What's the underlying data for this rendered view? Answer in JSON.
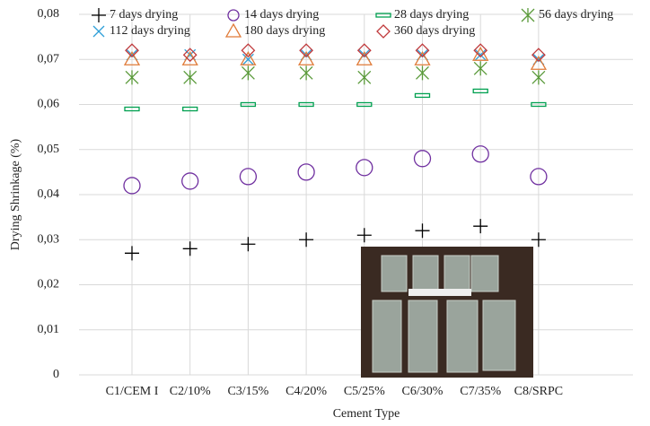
{
  "chart_data": {
    "type": "scatter",
    "y_label": "Drying Shrinkage (%)",
    "x_label": "Cement Type",
    "categories": [
      "C1/CEM I",
      "C2/10%",
      "C3/15%",
      "C4/20%",
      "C5/25%",
      "C6/30%",
      "C7/35%",
      "C8/SRPC"
    ],
    "ylim": [
      0,
      0.08
    ],
    "yticks": [
      0,
      {
        "value": 0.01,
        "label": "0,01"
      },
      {
        "value": 0.02,
        "label": "0,02"
      },
      {
        "value": 0.03,
        "label": "0,03"
      },
      {
        "value": 0.04,
        "label": "0,04"
      },
      {
        "value": 0.05,
        "label": "0,05"
      },
      {
        "value": 0.06,
        "label": "0,06"
      },
      {
        "value": 0.07,
        "label": "0,07"
      },
      {
        "value": 0.08,
        "label": "0,08"
      }
    ],
    "grid": true,
    "series": [
      {
        "name": "7 days drying",
        "color": "#000000",
        "marker": "plus",
        "values": [
          0.027,
          0.028,
          0.029,
          0.03,
          0.031,
          0.032,
          0.033,
          0.03
        ]
      },
      {
        "name": "14 days drying",
        "color": "#7030a0",
        "marker": "circle",
        "values": [
          0.042,
          0.043,
          0.044,
          0.045,
          0.046,
          0.048,
          0.049,
          0.044
        ]
      },
      {
        "name": "28 days drying",
        "color": "#00a050",
        "marker": "dash",
        "values": [
          0.059,
          0.059,
          0.06,
          0.06,
          0.06,
          0.062,
          0.063,
          0.06
        ]
      },
      {
        "name": "56 days drying",
        "color": "#5a9a3a",
        "marker": "star",
        "values": [
          0.066,
          0.066,
          0.067,
          0.067,
          0.066,
          0.067,
          0.068,
          0.066
        ]
      },
      {
        "name": "112 days drying",
        "color": "#2e9fd8",
        "marker": "x",
        "values": [
          0.071,
          0.071,
          0.07,
          0.071,
          0.071,
          0.071,
          0.071,
          0.07
        ]
      },
      {
        "name": "180 days drying",
        "color": "#e07b39",
        "marker": "triangle",
        "values": [
          0.07,
          0.07,
          0.07,
          0.07,
          0.07,
          0.07,
          0.071,
          0.069
        ]
      },
      {
        "name": "360 days drying",
        "color": "#c0393b",
        "marker": "diamond",
        "values": [
          0.072,
          0.071,
          0.072,
          0.072,
          0.072,
          0.072,
          0.072,
          0.071
        ]
      }
    ]
  }
}
